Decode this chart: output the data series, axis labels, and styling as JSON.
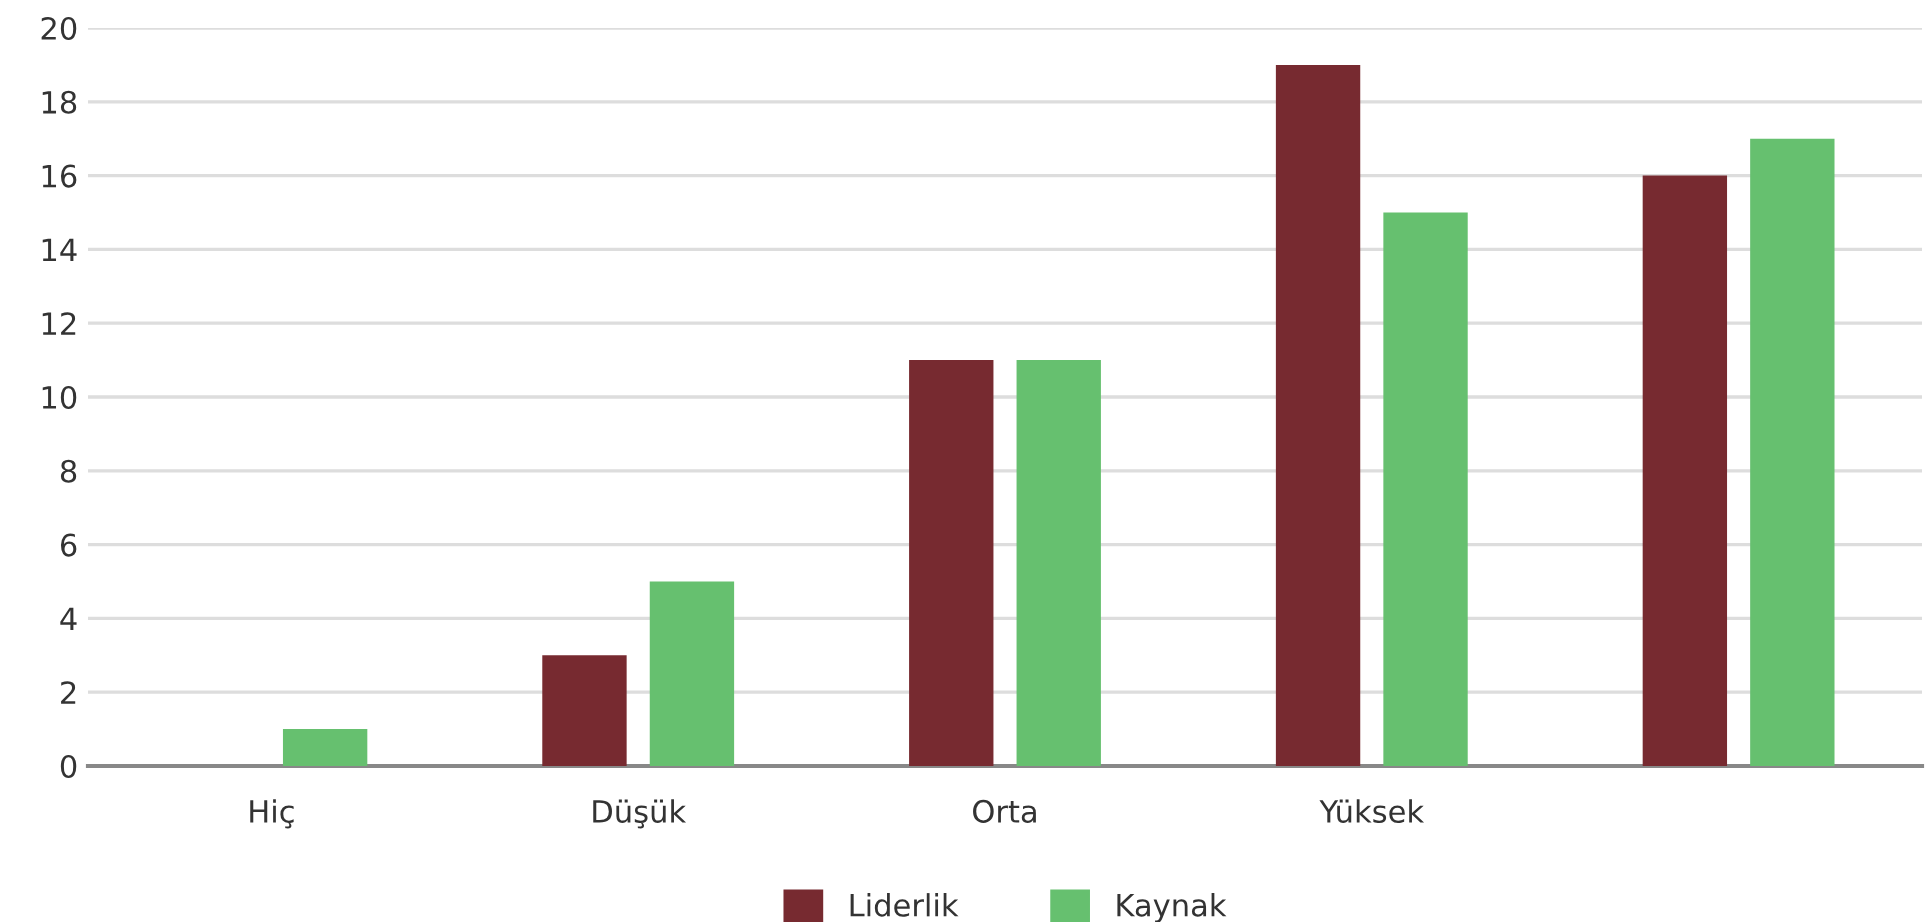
{
  "chart_data": {
    "type": "bar",
    "categories": [
      "Hiç",
      "Düşük",
      "Orta",
      "Yüksek",
      null
    ],
    "series": [
      {
        "name": "Liderlik",
        "color": "#772a30",
        "values": [
          0,
          3,
          11,
          19,
          16
        ]
      },
      {
        "name": "Kaynak",
        "color": "#66c06f",
        "values": [
          1,
          5,
          11,
          15,
          17
        ]
      }
    ],
    "ylim": [
      0,
      20
    ],
    "yticks": [
      0,
      2,
      4,
      6,
      8,
      10,
      12,
      14,
      16,
      18,
      20
    ],
    "grid": "y",
    "legend": "bottom"
  }
}
